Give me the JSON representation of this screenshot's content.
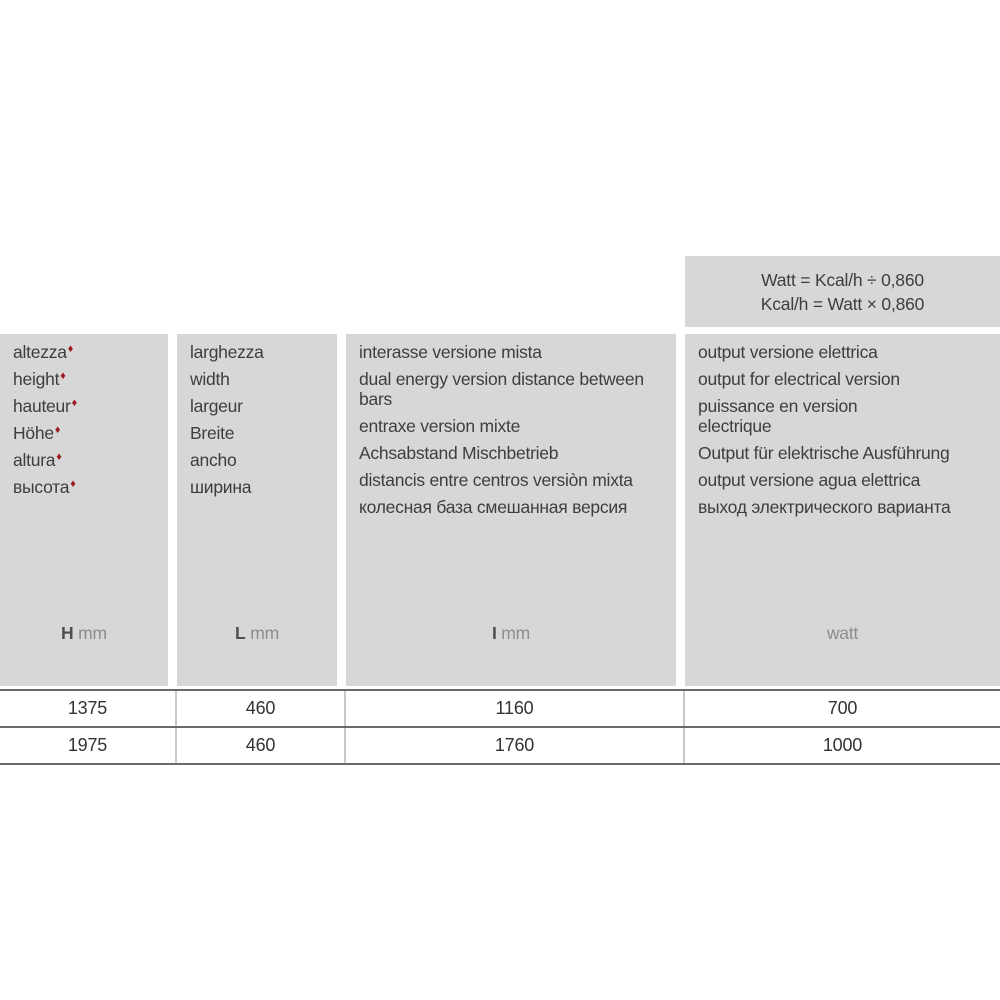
{
  "colors": {
    "panel_gray": "#d7d7d7",
    "text_dark": "#3e3e3e",
    "unit_gray": "#8d8d8d",
    "unit_symbol_gray": "#4f4f4f",
    "marker_red": "#9e1b21",
    "row_border_gray": "#6a6a6a",
    "cell_separator_gray": "#c9c9c9"
  },
  "formula_box": {
    "line1": "Watt = Kcal/h ÷ 0,860",
    "line2": "Kcal/h = Watt × 0,860"
  },
  "table": {
    "marker_glyph": "♦",
    "columns": [
      {
        "id": "height",
        "marker": true,
        "labels": [
          "altezza",
          "height",
          "hauteur",
          "Höhe",
          "altura",
          "высота"
        ],
        "unit_symbol": "H",
        "unit_text": "mm"
      },
      {
        "id": "width",
        "marker": false,
        "labels": [
          "larghezza",
          "width",
          "largeur",
          "Breite",
          "ancho",
          "ширина"
        ],
        "unit_symbol": "L",
        "unit_text": "mm"
      },
      {
        "id": "distance-between-bars",
        "marker": false,
        "labels": [
          "interasse versione mista",
          "dual energy version distance between\nbars",
          "entraxe  version mixte",
          "Achsabstand Mischbetrieb",
          "distancis entre centros versiòn mixta",
          "колесная база смешанная версия"
        ],
        "unit_symbol": "I",
        "unit_text": "mm"
      },
      {
        "id": "electrical-output",
        "marker": false,
        "labels": [
          "output versione elettrica",
          "output for electrical version",
          "puissance en version\nelectrique",
          "Output für elektrische Ausführung",
          "output versione agua elettrica",
          "выход электрического варианта"
        ],
        "unit_symbol": "",
        "unit_text": "watt"
      }
    ],
    "rows": [
      [
        "1375",
        "460",
        "1160",
        "700"
      ],
      [
        "1975",
        "460",
        "1760",
        "1000"
      ]
    ]
  }
}
